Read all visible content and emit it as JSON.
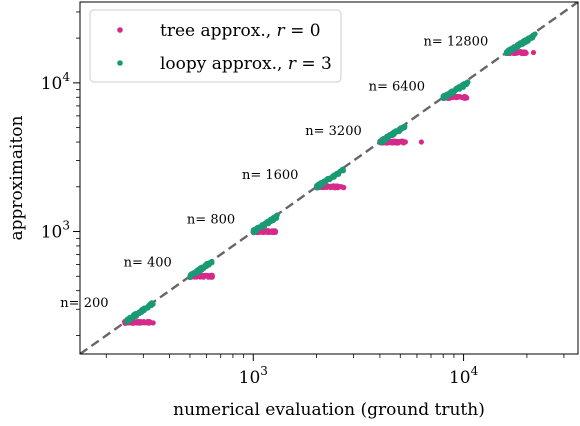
{
  "chart_data": {
    "type": "scatter",
    "xlabel": "numerical evaluation (ground truth)",
    "ylabel": "approximaiton",
    "xscale": "log",
    "yscale": "log",
    "xlim": [
      150,
      35000
    ],
    "ylim": [
      150,
      35000
    ],
    "x_ticks": [
      {
        "value": 1000,
        "base": "10",
        "exp": "3"
      },
      {
        "value": 10000,
        "base": "10",
        "exp": "4"
      }
    ],
    "y_ticks": [
      {
        "value": 1000,
        "base": "10",
        "exp": "3"
      },
      {
        "value": 10000,
        "base": "10",
        "exp": "4"
      }
    ],
    "grid": false,
    "legend_position": "top-left",
    "reference_line": {
      "style": "dashed",
      "color": "#666666",
      "from": [
        150,
        150
      ],
      "to": [
        35000,
        35000
      ]
    },
    "series": [
      {
        "name": "tree approx., r = 0",
        "legend_label": {
          "text": "tree approx., ",
          "var": "r",
          "eq": " = 0"
        },
        "color": "#d62a8a",
        "clusters": [
          {
            "n": 200,
            "x_min": 245,
            "x_max": 335,
            "y": 245,
            "outliers": [
              [
                250,
                250
              ],
              [
                310,
                245
              ]
            ]
          },
          {
            "n": 400,
            "x_min": 500,
            "x_max": 640,
            "y": 500,
            "outliers": []
          },
          {
            "n": 800,
            "x_min": 1000,
            "x_max": 1300,
            "y": 1000,
            "outliers": []
          },
          {
            "n": 1600,
            "x_min": 2000,
            "x_max": 2700,
            "y": 2000,
            "outliers": []
          },
          {
            "n": 3200,
            "x_min": 4000,
            "x_max": 5300,
            "y": 4000,
            "outliers": [
              [
                6300,
                4000
              ]
            ]
          },
          {
            "n": 6400,
            "x_min": 8000,
            "x_max": 10500,
            "y": 8000,
            "outliers": []
          },
          {
            "n": 12800,
            "x_min": 16000,
            "x_max": 20000,
            "y": 16000,
            "outliers": [
              [
                21500,
                16000
              ]
            ]
          }
        ]
      },
      {
        "name": "loopy approx., r = 3",
        "legend_label": {
          "text": "loopy approx., ",
          "var": "r",
          "eq": " = 3"
        },
        "color": "#1a9a74",
        "clusters": [
          {
            "n": 200,
            "x_min": 250,
            "x_max": 335,
            "y_min": 250,
            "y_max": 330
          },
          {
            "n": 400,
            "x_min": 500,
            "x_max": 640,
            "y_min": 500,
            "y_max": 630
          },
          {
            "n": 800,
            "x_min": 1000,
            "x_max": 1300,
            "y_min": 1000,
            "y_max": 1260
          },
          {
            "n": 1600,
            "x_min": 2000,
            "x_max": 2700,
            "y_min": 2000,
            "y_max": 2600
          },
          {
            "n": 3200,
            "x_min": 4000,
            "x_max": 5300,
            "y_min": 4000,
            "y_max": 5100
          },
          {
            "n": 6400,
            "x_min": 8000,
            "x_max": 10500,
            "y_min": 8000,
            "y_max": 10000
          },
          {
            "n": 12800,
            "x_min": 16000,
            "x_max": 22000,
            "y_min": 16000,
            "y_max": 21000
          }
        ]
      }
    ],
    "annotations": [
      {
        "text": "n= 200",
        "x": 205,
        "y": 310
      },
      {
        "text": "n= 400",
        "x": 410,
        "y": 580
      },
      {
        "text": "n= 800",
        "x": 820,
        "y": 1130
      },
      {
        "text": "n= 1600",
        "x": 1640,
        "y": 2250
      },
      {
        "text": "n= 3200",
        "x": 3280,
        "y": 4450
      },
      {
        "text": "n= 6400",
        "x": 6560,
        "y": 8900
      },
      {
        "text": "n= 12800",
        "x": 13100,
        "y": 17800
      }
    ]
  }
}
